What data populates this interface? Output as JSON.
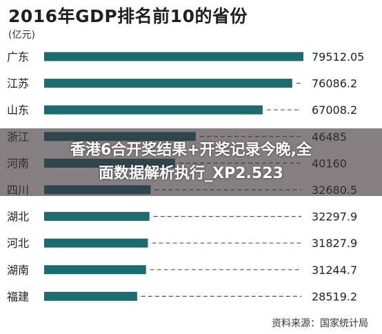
{
  "header": {
    "title": "2016年GDP排名前10的省份",
    "unit": "(亿元)"
  },
  "footer": {
    "source": "资料来源：国家统计局"
  },
  "overlay": {
    "line1": "香港6合开奖结果+开奖记录今晚,全",
    "line2": "面数据解析执行_XP2.523"
  },
  "colors": {
    "bar": "#1c6b6e",
    "dash": "#555555",
    "text": "#222222"
  },
  "chart_data": {
    "type": "bar",
    "orientation": "horizontal",
    "title": "2016年GDP排名前10的省份",
    "unit": "(亿元)",
    "categories": [
      "广东",
      "江苏",
      "山东",
      "浙江",
      "河南",
      "四川",
      "湖北",
      "河北",
      "湖南",
      "福建"
    ],
    "values": [
      79512.05,
      76086.2,
      67008.2,
      46485,
      40160,
      32680.5,
      32297.9,
      31827.9,
      31244.7,
      28519.2
    ],
    "value_labels": [
      "79512.05",
      "76086.2",
      "67008.2",
      "46485",
      "40160",
      "32680.5",
      "32297.9",
      "31827.9",
      "31244.7",
      "28519.2"
    ],
    "xlim": [
      0,
      79512.05
    ],
    "grid": false,
    "legend": "none"
  }
}
